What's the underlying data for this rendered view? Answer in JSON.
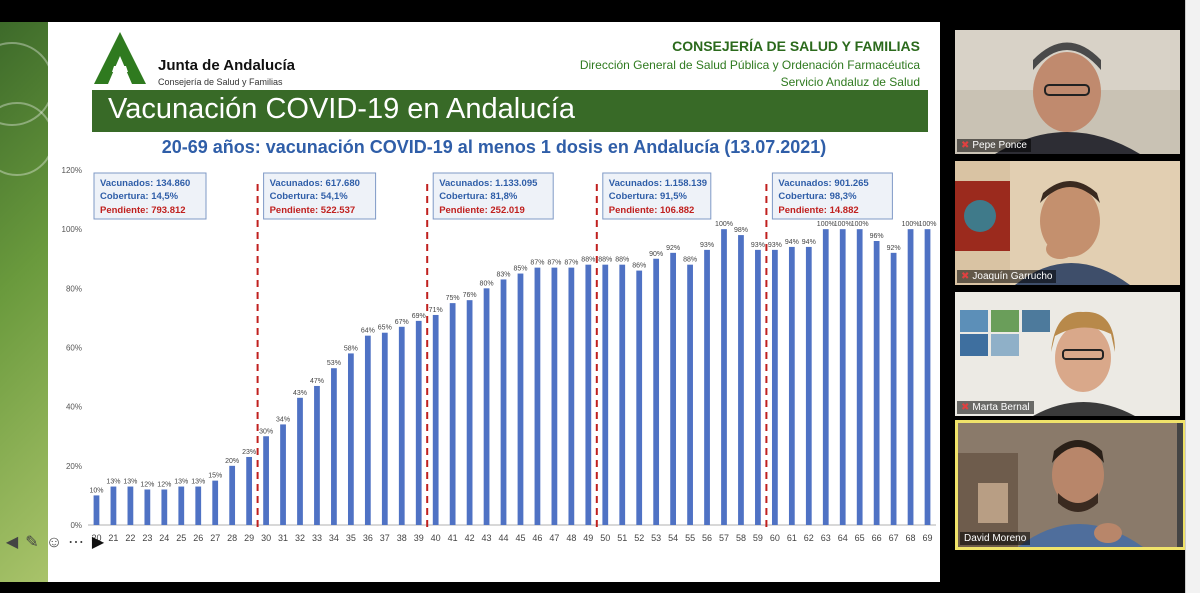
{
  "slide": {
    "logo_title": "Junta de Andalucía",
    "logo_subtitle": "Consejería de Salud y Familias",
    "header_line1": "CONSEJERÍA DE SALUD Y FAMILIAS",
    "header_line2": "Dirección General de Salud Pública y Ordenación Farmacéutica",
    "header_line3": "Servicio Andaluz de Salud",
    "title": "Vacunación COVID-19 en Andalucía",
    "chart_title": "20-69 años: vacunación COVID-19 al menos 1 dosis en Andalucía (13.07.2021)"
  },
  "colors": {
    "bar": "#4f72c4",
    "divider": "#c0201e",
    "title_bar": "#386a27",
    "chart_title": "#2f5ea8",
    "pending_text": "#c0201e",
    "box_text": "#2f5ea8"
  },
  "chart_data": {
    "type": "bar",
    "title": "20-69 años: vacunación COVID-19 al menos 1 dosis en Andalucía (13.07.2021)",
    "xlabel": "",
    "ylabel": "",
    "ylim": [
      0,
      120
    ],
    "yticks": [
      "0%",
      "20%",
      "40%",
      "60%",
      "80%",
      "100%",
      "120%"
    ],
    "grid": false,
    "categories": [
      "20",
      "21",
      "22",
      "23",
      "24",
      "25",
      "26",
      "27",
      "28",
      "29",
      "30",
      "31",
      "32",
      "33",
      "34",
      "35",
      "36",
      "37",
      "38",
      "39",
      "40",
      "41",
      "42",
      "43",
      "44",
      "45",
      "46",
      "47",
      "48",
      "49",
      "50",
      "51",
      "52",
      "53",
      "54",
      "55",
      "56",
      "57",
      "58",
      "59",
      "60",
      "61",
      "62",
      "63",
      "64",
      "65",
      "66",
      "67",
      "68",
      "69"
    ],
    "values": [
      10,
      13,
      13,
      12,
      12,
      13,
      13,
      15,
      20,
      23,
      30,
      34,
      43,
      47,
      53,
      58,
      64,
      65,
      67,
      69,
      71,
      75,
      76,
      80,
      83,
      85,
      87,
      87,
      87,
      88,
      88,
      88,
      86,
      90,
      92,
      88,
      93,
      100,
      98,
      93,
      93,
      94,
      94,
      100,
      100,
      100,
      96,
      92,
      100,
      100
    ],
    "labels": [
      "10%",
      "13%",
      "13%",
      "12%",
      "12%",
      "13%",
      "13%",
      "15%",
      "20%",
      "23%",
      "30%",
      "34%",
      "43%",
      "47%",
      "53%",
      "58%",
      "64%",
      "65%",
      "67%",
      "69%",
      "71%",
      "75%",
      "76%",
      "80%",
      "83%",
      "85%",
      "87%",
      "87%",
      "87%",
      "88%",
      "88%",
      "88%",
      "86%",
      "90%",
      "92%",
      "88%",
      "93%",
      "100%",
      "98%",
      "93%",
      "93%",
      "94%",
      "94%",
      "100%",
      "100%",
      "100%",
      "96%",
      "92%",
      "100%",
      "100%"
    ],
    "group_boxes": [
      {
        "vacunados": "Vacunados: 134.860",
        "cobertura": "Cobertura: 14,5%",
        "pendiente": "Pendiente: 793.812"
      },
      {
        "vacunados": "Vacunados: 617.680",
        "cobertura": "Cobertura: 54,1%",
        "pendiente": "Pendiente: 522.537"
      },
      {
        "vacunados": "Vacunados: 1.133.095",
        "cobertura": "Cobertura: 81,8%",
        "pendiente": "Pendiente: 252.019"
      },
      {
        "vacunados": "Vacunados: 1.158.139",
        "cobertura": "Cobertura: 91,5%",
        "pendiente": "Pendiente: 106.882"
      },
      {
        "vacunados": "Vacunados: 901.265",
        "cobertura": "Cobertura: 98,3%",
        "pendiente": "Pendiente: 14.882"
      }
    ]
  },
  "participants": [
    {
      "name": "Pepe Ponce",
      "muted": true,
      "active": false
    },
    {
      "name": "Joaquín Garrucho",
      "muted": true,
      "active": false
    },
    {
      "name": "Marta Bernal",
      "muted": true,
      "active": false
    },
    {
      "name": "David Moreno",
      "muted": false,
      "active": true
    }
  ],
  "nav_icons": [
    "arrow-left-icon",
    "pen-icon",
    "subtitle-icon",
    "more-icon",
    "arrow-right-icon"
  ]
}
